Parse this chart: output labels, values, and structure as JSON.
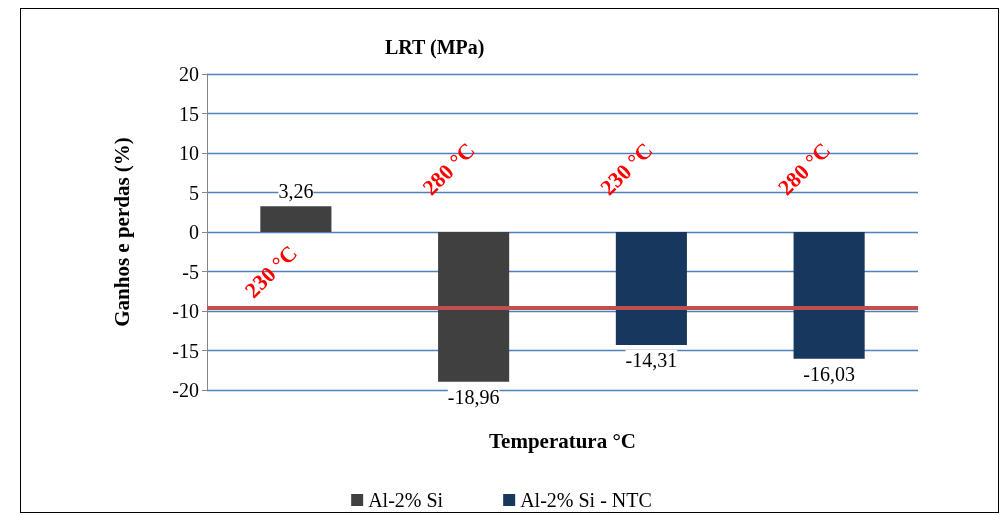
{
  "chart_data": {
    "type": "bar",
    "title": "LRT (MPa)",
    "xlabel": "Temperatura °C",
    "ylabel": "Ganhos e perdas (%)",
    "categories": [
      null,
      null,
      null,
      null
    ],
    "series": [
      {
        "name": "Al-2% Si",
        "color": "#404040",
        "values": [
          3.26,
          -18.96,
          null,
          null
        ],
        "value_labels": [
          "3,26",
          "-18,96",
          null,
          null
        ]
      },
      {
        "name": "Al-2% Si - NTC",
        "color": "#17375e",
        "values": [
          null,
          null,
          -14.31,
          -16.03
        ],
        "value_labels": [
          null,
          null,
          "-14,31",
          "-16,03"
        ]
      }
    ],
    "ylim": [
      -20,
      20
    ],
    "yticks": [
      -20,
      -15,
      -10,
      -5,
      0,
      5,
      10,
      15,
      20
    ],
    "grid": "y",
    "legend": "bottom",
    "ref_lines": [
      {
        "axis": "y",
        "value": -9.6,
        "color": "#c0504d"
      }
    ],
    "annotations": [
      "230 °C",
      "280 °C",
      "230 °C",
      "280 °C"
    ]
  }
}
